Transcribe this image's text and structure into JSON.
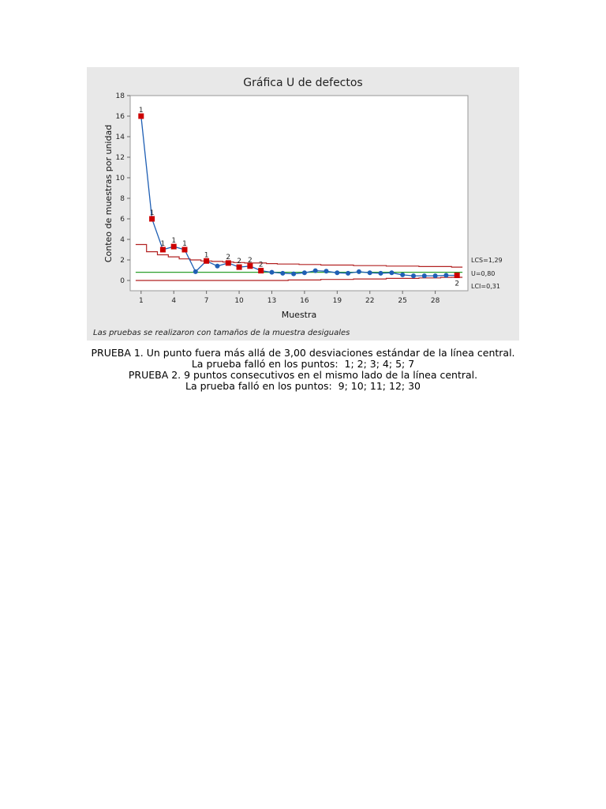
{
  "chart_data": {
    "type": "line",
    "title": "Gráfica U de defectos",
    "xlabel": "Muestra",
    "ylabel": "Conteo de muestras por unidad",
    "footnote": "Las pruebas se realizaron con tamaños de la muestra desiguales",
    "xlim": [
      0,
      31
    ],
    "ylim": [
      -1,
      18
    ],
    "x_ticks": [
      1,
      4,
      7,
      10,
      13,
      16,
      19,
      22,
      25,
      28
    ],
    "y_ticks": [
      0,
      2,
      4,
      6,
      8,
      10,
      12,
      14,
      16,
      18
    ],
    "x": [
      1,
      2,
      3,
      4,
      5,
      6,
      7,
      8,
      9,
      10,
      11,
      12,
      13,
      14,
      15,
      16,
      17,
      18,
      19,
      20,
      21,
      22,
      23,
      24,
      25,
      26,
      27,
      28,
      29,
      30
    ],
    "values": [
      16.0,
      6.0,
      3.0,
      3.3,
      3.0,
      0.85,
      1.9,
      1.4,
      1.7,
      1.3,
      1.4,
      0.95,
      0.8,
      0.7,
      0.65,
      0.75,
      0.95,
      0.9,
      0.75,
      0.7,
      0.85,
      0.75,
      0.7,
      0.75,
      0.55,
      0.45,
      0.45,
      0.45,
      0.5,
      0.5
    ],
    "out_of_control": [
      {
        "x": 1,
        "label": "1"
      },
      {
        "x": 2,
        "label": "1"
      },
      {
        "x": 3,
        "label": "1"
      },
      {
        "x": 4,
        "label": "1"
      },
      {
        "x": 5,
        "label": "1"
      },
      {
        "x": 7,
        "label": "1"
      },
      {
        "x": 9,
        "label": "2"
      },
      {
        "x": 10,
        "label": "2"
      },
      {
        "x": 11,
        "label": "2"
      },
      {
        "x": 12,
        "label": "2"
      },
      {
        "x": 30,
        "label": "2"
      }
    ],
    "center_line": 0.8,
    "ucl": [
      3.5,
      2.8,
      2.5,
      2.3,
      2.1,
      2.0,
      1.9,
      1.85,
      1.8,
      1.75,
      1.7,
      1.7,
      1.65,
      1.6,
      1.6,
      1.55,
      1.55,
      1.5,
      1.5,
      1.5,
      1.45,
      1.45,
      1.45,
      1.4,
      1.4,
      1.4,
      1.35,
      1.35,
      1.35,
      1.3
    ],
    "lcl": [
      0,
      0,
      0,
      0,
      0,
      0,
      0,
      0,
      0,
      0,
      0,
      0,
      0,
      0,
      0.05,
      0.05,
      0.05,
      0.1,
      0.1,
      0.1,
      0.15,
      0.15,
      0.15,
      0.2,
      0.2,
      0.2,
      0.25,
      0.25,
      0.3,
      0.31
    ],
    "limit_labels": {
      "ucl": "LCS=1,29",
      "center": "U=0,80",
      "lcl": "LCI=0,31"
    },
    "colors": {
      "line": "#1f5fb4",
      "point": "#1f5fb4",
      "flagged": "#cc0000",
      "limits": "#b22222",
      "center": "#2ca02c",
      "panel": "#e8e8e8"
    }
  },
  "results": {
    "line1": "PRUEBA 1. Un punto fuera más allá de 3,00 desviaciones estándar de la línea central.",
    "line2": "La prueba falló en los puntos:  1; 2; 3; 4; 5; 7",
    "line3": "PRUEBA 2. 9 puntos consecutivos en el mismo lado de la línea central.",
    "line4": "La prueba falló en los puntos:  9; 10; 11; 12; 30"
  }
}
